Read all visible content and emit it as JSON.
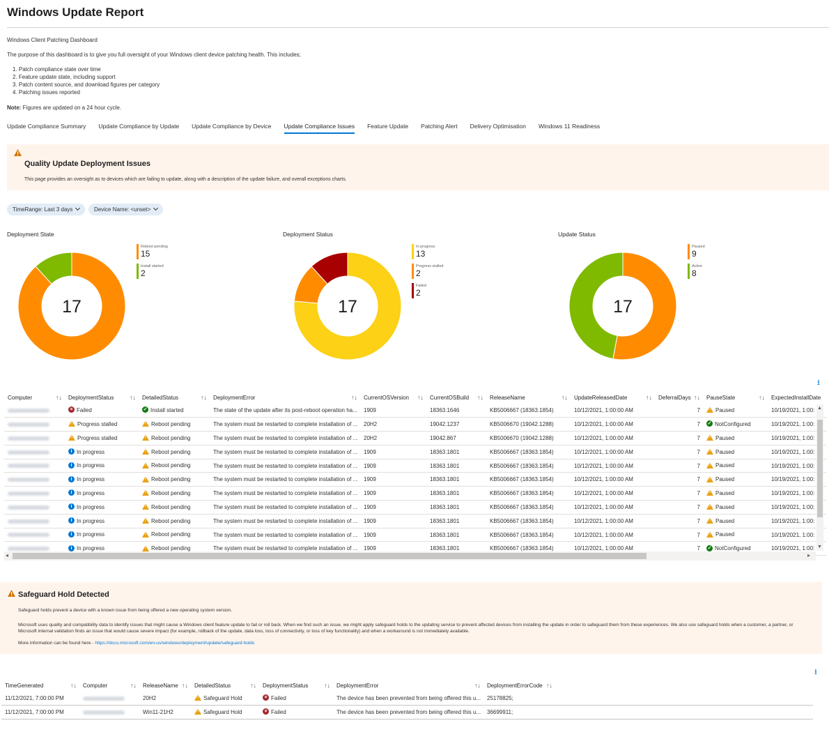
{
  "header": {
    "title": "Windows Update Report"
  },
  "intro": {
    "subtitle": "Windows Client Patching Dashboard",
    "purpose": "The purpose of this dashboard is to give you full oversight of your Windows client device patching health. This includes;",
    "items": [
      "1. Patch compliance state over time",
      "2. Feature update state, including support",
      "3. Patch content source, and download figures per category",
      "4. Patching issues reported"
    ],
    "note_label": "Note:",
    "note_text": " Figures are updated on a 24 hour cycle."
  },
  "tabs": [
    {
      "label": "Update Compliance Summary",
      "active": false
    },
    {
      "label": "Update Compliance by Update",
      "active": false
    },
    {
      "label": "Update Compliance by Device",
      "active": false
    },
    {
      "label": "Update Compliance Issues",
      "active": true
    },
    {
      "label": "Feature Update",
      "active": false
    },
    {
      "label": "Patching Alert",
      "active": false
    },
    {
      "label": "Delivery Optimisation",
      "active": false
    },
    {
      "label": "Windows 11 Readiness",
      "active": false
    }
  ],
  "banner": {
    "title": "Quality Update Deployment Issues",
    "description": "This page provides an oversight as to devices which are failing to update, along with a description of the update failure, and overall exceptions charts."
  },
  "filters": {
    "time_range": "TimeRange: Last 3 days",
    "device_name": "Device Name: <unset>"
  },
  "colors": {
    "orange": "#ff8c00",
    "green": "#7fba00",
    "yellow": "#fcd116",
    "red": "#a80000",
    "accent": "#0078d4"
  },
  "chart_data": [
    {
      "type": "pie",
      "title": "Deployment State",
      "total": "17",
      "slices": [
        {
          "name": "Reboot pending",
          "value": 15,
          "color": "#ff8c00"
        },
        {
          "name": "Install started",
          "value": 2,
          "color": "#7fba00"
        }
      ]
    },
    {
      "type": "pie",
      "title": "Deployment Status",
      "total": "17",
      "slices": [
        {
          "name": "In progress",
          "value": 13,
          "color": "#fcd116"
        },
        {
          "name": "Progress stalled",
          "value": 2,
          "color": "#ff8c00"
        },
        {
          "name": "Failed",
          "value": 2,
          "color": "#a80000"
        }
      ]
    },
    {
      "type": "pie",
      "title": "Update Status",
      "total": "17",
      "slices": [
        {
          "name": "Paused",
          "value": 9,
          "color": "#ff8c00"
        },
        {
          "name": "Active",
          "value": 8,
          "color": "#7fba00"
        }
      ]
    }
  ],
  "grid1": {
    "columns": [
      "Computer",
      "DeploymentStatus",
      "DetailedStatus",
      "DeploymentError",
      "CurrentOSVersion",
      "CurrentOSBuild",
      "ReleaseName",
      "UpdateReleasedDate",
      "DeferralDays",
      "PauseState",
      "ExpectedInstallDate"
    ],
    "rows": [
      {
        "ds_icon": "fail",
        "ds": "Failed",
        "det_icon": "ok",
        "det": "Install started",
        "err": "The state of the update after its post-reboot operation ha...",
        "ver": "1909",
        "build": "18363.1646",
        "rel": "KB5006667 (18363.1854)",
        "date": "10/12/2021, 1:00:00 AM",
        "defer": "7",
        "pause_icon": "warn",
        "pause": "Paused",
        "exp": "10/19/2021, 1:00:"
      },
      {
        "ds_icon": "warn",
        "ds": "Progress stalled",
        "det_icon": "warn",
        "det": "Reboot pending",
        "err": "The system must be restarted to complete installation of ...",
        "ver": "20H2",
        "build": "19042.1237",
        "rel": "KB5006670 (19042.1288)",
        "date": "10/12/2021, 1:00:00 AM",
        "defer": "7",
        "pause_icon": "ok",
        "pause": "NotConfigured",
        "exp": "10/19/2021, 1:00:"
      },
      {
        "ds_icon": "warn",
        "ds": "Progress stalled",
        "det_icon": "warn",
        "det": "Reboot pending",
        "err": "The system must be restarted to complete installation of ...",
        "ver": "20H2",
        "build": "19042.867",
        "rel": "KB5006670 (19042.1288)",
        "date": "10/12/2021, 1:00:00 AM",
        "defer": "7",
        "pause_icon": "warn",
        "pause": "Paused",
        "exp": "10/19/2021, 1:00:"
      },
      {
        "ds_icon": "info",
        "ds": "In progress",
        "det_icon": "warn",
        "det": "Reboot pending",
        "err": "The system must be restarted to complete installation of ...",
        "ver": "1909",
        "build": "18363.1801",
        "rel": "KB5006667 (18363.1854)",
        "date": "10/12/2021, 1:00:00 AM",
        "defer": "7",
        "pause_icon": "warn",
        "pause": "Paused",
        "exp": "10/19/2021, 1:00:"
      },
      {
        "ds_icon": "info",
        "ds": "In progress",
        "det_icon": "warn",
        "det": "Reboot pending",
        "err": "The system must be restarted to complete installation of ...",
        "ver": "1909",
        "build": "18363.1801",
        "rel": "KB5006667 (18363.1854)",
        "date": "10/12/2021, 1:00:00 AM",
        "defer": "7",
        "pause_icon": "warn",
        "pause": "Paused",
        "exp": "10/19/2021, 1:00:"
      },
      {
        "ds_icon": "info",
        "ds": "In progress",
        "det_icon": "warn",
        "det": "Reboot pending",
        "err": "The system must be restarted to complete installation of ...",
        "ver": "1909",
        "build": "18363.1801",
        "rel": "KB5006667 (18363.1854)",
        "date": "10/12/2021, 1:00:00 AM",
        "defer": "7",
        "pause_icon": "warn",
        "pause": "Paused",
        "exp": "10/19/2021, 1:00:"
      },
      {
        "ds_icon": "info",
        "ds": "In progress",
        "det_icon": "warn",
        "det": "Reboot pending",
        "err": "The system must be restarted to complete installation of ...",
        "ver": "1909",
        "build": "18363.1801",
        "rel": "KB5006667 (18363.1854)",
        "date": "10/12/2021, 1:00:00 AM",
        "defer": "7",
        "pause_icon": "warn",
        "pause": "Paused",
        "exp": "10/19/2021, 1:00:"
      },
      {
        "ds_icon": "info",
        "ds": "In progress",
        "det_icon": "warn",
        "det": "Reboot pending",
        "err": "The system must be restarted to complete installation of ...",
        "ver": "1909",
        "build": "18363.1801",
        "rel": "KB5006667 (18363.1854)",
        "date": "10/12/2021, 1:00:00 AM",
        "defer": "7",
        "pause_icon": "warn",
        "pause": "Paused",
        "exp": "10/19/2021, 1:00:"
      },
      {
        "ds_icon": "info",
        "ds": "In progress",
        "det_icon": "warn",
        "det": "Reboot pending",
        "err": "The system must be restarted to complete installation of ...",
        "ver": "1909",
        "build": "18363.1801",
        "rel": "KB5006667 (18363.1854)",
        "date": "10/12/2021, 1:00:00 AM",
        "defer": "7",
        "pause_icon": "warn",
        "pause": "Paused",
        "exp": "10/19/2021, 1:00:"
      },
      {
        "ds_icon": "info",
        "ds": "In progress",
        "det_icon": "warn",
        "det": "Reboot pending",
        "err": "The system must be restarted to complete installation of ...",
        "ver": "1909",
        "build": "18363.1801",
        "rel": "KB5006667 (18363.1854)",
        "date": "10/12/2021, 1:00:00 AM",
        "defer": "7",
        "pause_icon": "warn",
        "pause": "Paused",
        "exp": "10/19/2021, 1:00:"
      },
      {
        "ds_icon": "info",
        "ds": "In progress",
        "det_icon": "warn",
        "det": "Reboot pending",
        "err": "The system must be restarted to complete installation of ...",
        "ver": "1909",
        "build": "18363.1801",
        "rel": "KB5006667 (18363.1854)",
        "date": "10/12/2021, 1:00:00 AM",
        "defer": "7",
        "pause_icon": "ok",
        "pause": "NotConfigured",
        "exp": "10/19/2021, 1:00:"
      }
    ]
  },
  "safeguard": {
    "title": "Safeguard Hold Detected",
    "p1": "Safeguard holds prevent a device with a known issue from being offered a new operating system version.",
    "p2": "Microsoft uses quality and compatibility data to identify issues that might cause a Windows client feature update to fail or roll back. When we find such an issue, we might apply safeguard holds to the updating service to prevent affected devices from installing the update in order to safeguard them from these experiences. We also use safeguard holds when a customer, a partner, or Microsoft internal validation finds an issue that would cause severe impact (for example, rollback of the update, data loss, loss of connectivity, or loss of key functionality) and when a workaround is not immediately available.",
    "more_prefix": "More information can be found here - ",
    "link": "https://docs.microsoft.com/en-us/windows/deployment/update/safeguard-holds"
  },
  "grid2": {
    "columns": [
      "TimeGenerated",
      "Computer",
      "ReleaseName",
      "DetailedStatus",
      "DeploymentStatus",
      "DeploymentError",
      "DeploymentErrorCode"
    ],
    "rows": [
      {
        "time": "11/12/2021, 7:00:00 PM",
        "rel": "20H2",
        "det": "Safeguard Hold",
        "ds": "Failed",
        "err": "The device has been prevented from being offered this u...",
        "code": "25178825;"
      },
      {
        "time": "11/12/2021, 7:00:00 PM",
        "rel": "Win11-21H2",
        "det": "Safeguard Hold",
        "ds": "Failed",
        "err": "The device has been prevented from being offered this u...",
        "code": "36699911;"
      }
    ]
  }
}
